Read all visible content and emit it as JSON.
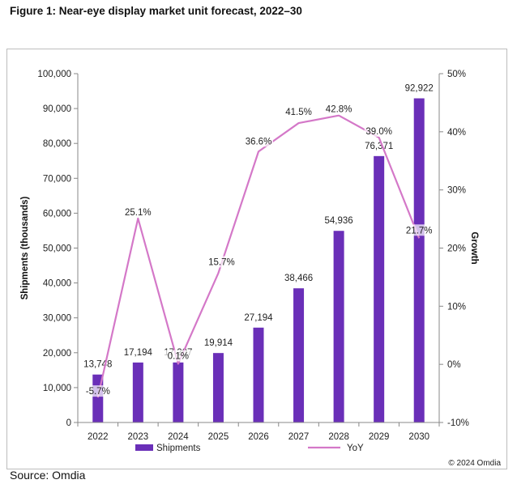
{
  "figure_title": "Figure 1: Near-eye display market unit forecast, 2022–30",
  "source": "Source: Omdia",
  "copyright": "© 2024 Omdia",
  "colors": {
    "bar": "#6a2fb8",
    "line": "#d478c8",
    "axis": "#888888"
  },
  "chart_data": {
    "type": "bar",
    "title": "Near-eye display market unit forecast, 2022–30",
    "categories": [
      "2022",
      "2023",
      "2024",
      "2025",
      "2026",
      "2027",
      "2028",
      "2029",
      "2030"
    ],
    "series": [
      {
        "name": "Shipments",
        "type": "bar",
        "axis": "left",
        "values": [
          13748,
          17194,
          17207,
          19914,
          27194,
          38466,
          54936,
          76371,
          92922
        ],
        "labels": [
          "13,748",
          "17,194",
          "17,207",
          "19,914",
          "27,194",
          "38,466",
          "54,936",
          "76,371",
          "92,922"
        ]
      },
      {
        "name": "YoY",
        "type": "line",
        "axis": "right",
        "values": [
          -5.7,
          25.1,
          0.1,
          15.7,
          36.6,
          41.5,
          42.8,
          39.0,
          21.7
        ],
        "labels": [
          "-5.7%",
          "25.1%",
          "0.1%",
          "15.7%",
          "36.6%",
          "41.5%",
          "42.8%",
          "39.0%",
          "21.7%"
        ]
      }
    ],
    "ylabel": "Shipments (thousands)",
    "y2label": "Growth",
    "ylim": [
      0,
      100000
    ],
    "y2lim": [
      -10,
      50
    ],
    "yticks": [
      "0",
      "10,000",
      "20,000",
      "30,000",
      "40,000",
      "50,000",
      "60,000",
      "70,000",
      "80,000",
      "90,000",
      "100,000"
    ],
    "y2ticks": [
      "-10%",
      "0%",
      "10%",
      "20%",
      "30%",
      "40%",
      "50%"
    ],
    "legend": [
      "Shipments",
      "YoY"
    ],
    "legend_position": "bottom",
    "grid": false
  }
}
